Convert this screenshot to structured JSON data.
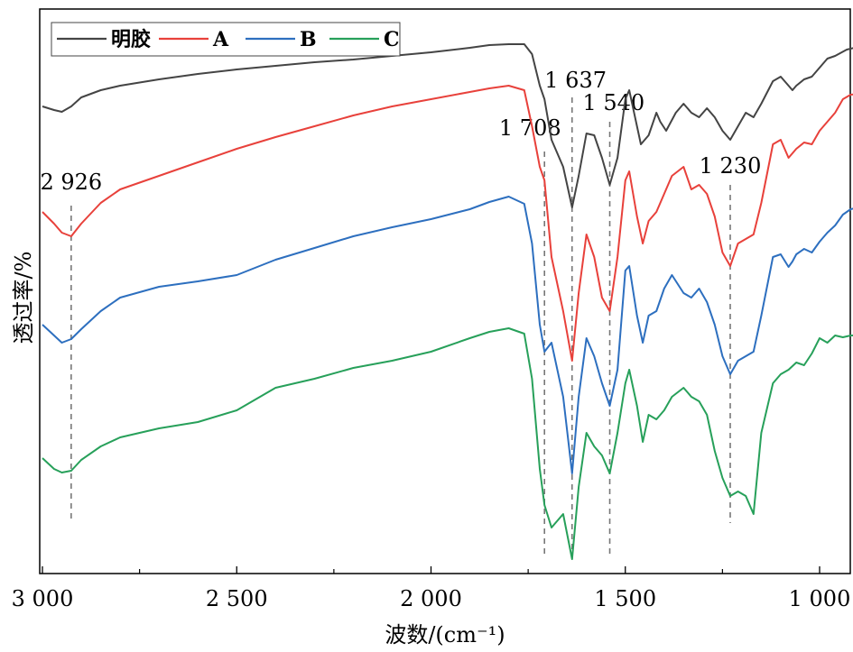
{
  "chart_data": {
    "type": "line",
    "title": "",
    "xlabel": "波数/(cm⁻¹)",
    "ylabel": "透过率/%",
    "x_reversed": true,
    "xlim": [
      3000,
      900
    ],
    "x_ticks": [
      3000,
      2500,
      2000,
      1500,
      1000
    ],
    "x_tick_labels": [
      "3 000",
      "2 500",
      "2 000",
      "1 500",
      "1 000"
    ],
    "legend": {
      "placement": "top-left",
      "entries": [
        "明胶",
        "A",
        "B",
        "C"
      ]
    },
    "series": [
      {
        "name": "明胶",
        "color": "#444444",
        "offset": 0,
        "points": [
          [
            3000,
            118
          ],
          [
            2970,
            122
          ],
          [
            2950,
            124
          ],
          [
            2926,
            118
          ],
          [
            2900,
            108
          ],
          [
            2850,
            100
          ],
          [
            2800,
            95
          ],
          [
            2700,
            88
          ],
          [
            2600,
            82
          ],
          [
            2500,
            77
          ],
          [
            2400,
            73
          ],
          [
            2300,
            69
          ],
          [
            2200,
            66
          ],
          [
            2100,
            62
          ],
          [
            2000,
            58
          ],
          [
            1900,
            53
          ],
          [
            1850,
            50
          ],
          [
            1800,
            49
          ],
          [
            1760,
            49
          ],
          [
            1740,
            60
          ],
          [
            1720,
            95
          ],
          [
            1708,
            110
          ],
          [
            1690,
            155
          ],
          [
            1660,
            185
          ],
          [
            1637,
            230
          ],
          [
            1620,
            195
          ],
          [
            1600,
            148
          ],
          [
            1580,
            150
          ],
          [
            1560,
            175
          ],
          [
            1540,
            205
          ],
          [
            1520,
            175
          ],
          [
            1500,
            110
          ],
          [
            1490,
            100
          ],
          [
            1470,
            140
          ],
          [
            1460,
            160
          ],
          [
            1440,
            150
          ],
          [
            1420,
            125
          ],
          [
            1410,
            135
          ],
          [
            1395,
            145
          ],
          [
            1370,
            125
          ],
          [
            1350,
            115
          ],
          [
            1330,
            125
          ],
          [
            1310,
            130
          ],
          [
            1290,
            120
          ],
          [
            1270,
            130
          ],
          [
            1250,
            145
          ],
          [
            1230,
            155
          ],
          [
            1210,
            140
          ],
          [
            1190,
            125
          ],
          [
            1170,
            130
          ],
          [
            1150,
            115
          ],
          [
            1120,
            90
          ],
          [
            1100,
            85
          ],
          [
            1080,
            95
          ],
          [
            1070,
            100
          ],
          [
            1060,
            95
          ],
          [
            1040,
            88
          ],
          [
            1020,
            85
          ],
          [
            1000,
            75
          ],
          [
            980,
            65
          ],
          [
            960,
            62
          ],
          [
            930,
            55
          ],
          [
            900,
            52
          ]
        ]
      },
      {
        "name": "A",
        "color": "#e8413b",
        "offset": 0,
        "points": [
          [
            3000,
            235
          ],
          [
            2970,
            248
          ],
          [
            2950,
            258
          ],
          [
            2926,
            262
          ],
          [
            2900,
            248
          ],
          [
            2850,
            225
          ],
          [
            2800,
            210
          ],
          [
            2700,
            195
          ],
          [
            2600,
            180
          ],
          [
            2500,
            165
          ],
          [
            2400,
            152
          ],
          [
            2300,
            140
          ],
          [
            2200,
            128
          ],
          [
            2100,
            118
          ],
          [
            2000,
            110
          ],
          [
            1900,
            102
          ],
          [
            1850,
            98
          ],
          [
            1800,
            95
          ],
          [
            1760,
            100
          ],
          [
            1740,
            140
          ],
          [
            1720,
            185
          ],
          [
            1708,
            200
          ],
          [
            1690,
            285
          ],
          [
            1660,
            345
          ],
          [
            1637,
            400
          ],
          [
            1620,
            325
          ],
          [
            1600,
            260
          ],
          [
            1580,
            285
          ],
          [
            1560,
            330
          ],
          [
            1540,
            345
          ],
          [
            1520,
            285
          ],
          [
            1500,
            200
          ],
          [
            1490,
            190
          ],
          [
            1470,
            240
          ],
          [
            1455,
            270
          ],
          [
            1440,
            245
          ],
          [
            1420,
            235
          ],
          [
            1400,
            215
          ],
          [
            1380,
            195
          ],
          [
            1350,
            185
          ],
          [
            1330,
            210
          ],
          [
            1310,
            205
          ],
          [
            1290,
            215
          ],
          [
            1270,
            240
          ],
          [
            1250,
            280
          ],
          [
            1230,
            295
          ],
          [
            1210,
            270
          ],
          [
            1190,
            265
          ],
          [
            1170,
            260
          ],
          [
            1150,
            225
          ],
          [
            1120,
            160
          ],
          [
            1100,
            155
          ],
          [
            1080,
            175
          ],
          [
            1070,
            170
          ],
          [
            1060,
            165
          ],
          [
            1040,
            158
          ],
          [
            1020,
            160
          ],
          [
            1000,
            145
          ],
          [
            980,
            135
          ],
          [
            960,
            125
          ],
          [
            940,
            110
          ],
          [
            920,
            105
          ],
          [
            900,
            104
          ]
        ]
      },
      {
        "name": "B",
        "color": "#2d6fbf",
        "offset": 0,
        "points": [
          [
            3000,
            360
          ],
          [
            2970,
            372
          ],
          [
            2950,
            380
          ],
          [
            2926,
            376
          ],
          [
            2900,
            365
          ],
          [
            2850,
            345
          ],
          [
            2800,
            330
          ],
          [
            2700,
            318
          ],
          [
            2600,
            312
          ],
          [
            2500,
            305
          ],
          [
            2400,
            288
          ],
          [
            2300,
            275
          ],
          [
            2200,
            262
          ],
          [
            2100,
            252
          ],
          [
            2000,
            243
          ],
          [
            1900,
            232
          ],
          [
            1850,
            224
          ],
          [
            1800,
            218
          ],
          [
            1760,
            226
          ],
          [
            1740,
            270
          ],
          [
            1720,
            360
          ],
          [
            1708,
            390
          ],
          [
            1690,
            380
          ],
          [
            1660,
            440
          ],
          [
            1637,
            525
          ],
          [
            1620,
            440
          ],
          [
            1600,
            375
          ],
          [
            1580,
            395
          ],
          [
            1560,
            425
          ],
          [
            1540,
            450
          ],
          [
            1520,
            410
          ],
          [
            1500,
            300
          ],
          [
            1490,
            295
          ],
          [
            1470,
            350
          ],
          [
            1455,
            380
          ],
          [
            1440,
            350
          ],
          [
            1420,
            345
          ],
          [
            1400,
            320
          ],
          [
            1380,
            305
          ],
          [
            1350,
            325
          ],
          [
            1330,
            330
          ],
          [
            1310,
            320
          ],
          [
            1290,
            335
          ],
          [
            1270,
            360
          ],
          [
            1250,
            395
          ],
          [
            1230,
            415
          ],
          [
            1210,
            400
          ],
          [
            1190,
            395
          ],
          [
            1170,
            390
          ],
          [
            1150,
            350
          ],
          [
            1120,
            285
          ],
          [
            1100,
            282
          ],
          [
            1080,
            296
          ],
          [
            1070,
            290
          ],
          [
            1060,
            282
          ],
          [
            1040,
            276
          ],
          [
            1020,
            280
          ],
          [
            1000,
            268
          ],
          [
            980,
            258
          ],
          [
            960,
            250
          ],
          [
            940,
            238
          ],
          [
            920,
            232
          ],
          [
            900,
            230
          ]
        ]
      },
      {
        "name": "C",
        "color": "#27a05a",
        "offset": 0,
        "points": [
          [
            3000,
            508
          ],
          [
            2970,
            520
          ],
          [
            2950,
            524
          ],
          [
            2926,
            522
          ],
          [
            2900,
            510
          ],
          [
            2850,
            495
          ],
          [
            2800,
            485
          ],
          [
            2700,
            475
          ],
          [
            2600,
            468
          ],
          [
            2500,
            455
          ],
          [
            2400,
            430
          ],
          [
            2300,
            420
          ],
          [
            2200,
            408
          ],
          [
            2100,
            400
          ],
          [
            2000,
            390
          ],
          [
            1900,
            375
          ],
          [
            1850,
            368
          ],
          [
            1800,
            364
          ],
          [
            1760,
            370
          ],
          [
            1740,
            420
          ],
          [
            1720,
            520
          ],
          [
            1708,
            560
          ],
          [
            1690,
            585
          ],
          [
            1660,
            570
          ],
          [
            1637,
            620
          ],
          [
            1620,
            540
          ],
          [
            1600,
            480
          ],
          [
            1580,
            495
          ],
          [
            1560,
            505
          ],
          [
            1540,
            525
          ],
          [
            1520,
            480
          ],
          [
            1500,
            425
          ],
          [
            1490,
            410
          ],
          [
            1470,
            450
          ],
          [
            1455,
            490
          ],
          [
            1440,
            460
          ],
          [
            1420,
            465
          ],
          [
            1400,
            455
          ],
          [
            1380,
            440
          ],
          [
            1350,
            430
          ],
          [
            1330,
            440
          ],
          [
            1310,
            445
          ],
          [
            1290,
            460
          ],
          [
            1270,
            500
          ],
          [
            1250,
            530
          ],
          [
            1230,
            550
          ],
          [
            1210,
            545
          ],
          [
            1190,
            550
          ],
          [
            1170,
            570
          ],
          [
            1150,
            480
          ],
          [
            1120,
            425
          ],
          [
            1100,
            415
          ],
          [
            1080,
            410
          ],
          [
            1060,
            402
          ],
          [
            1040,
            405
          ],
          [
            1020,
            392
          ],
          [
            1000,
            375
          ],
          [
            980,
            380
          ],
          [
            960,
            372
          ],
          [
            940,
            374
          ],
          [
            920,
            372
          ],
          [
            900,
            372
          ]
        ]
      }
    ],
    "annotations": [
      {
        "label": "2 926",
        "x": 2926
      },
      {
        "label": "1 708",
        "x": 1708
      },
      {
        "label": "1 637",
        "x": 1637
      },
      {
        "label": "1 540",
        "x": 1540
      },
      {
        "label": "1 230",
        "x": 1230
      }
    ],
    "grid": false,
    "y_ticks_shown": false
  }
}
